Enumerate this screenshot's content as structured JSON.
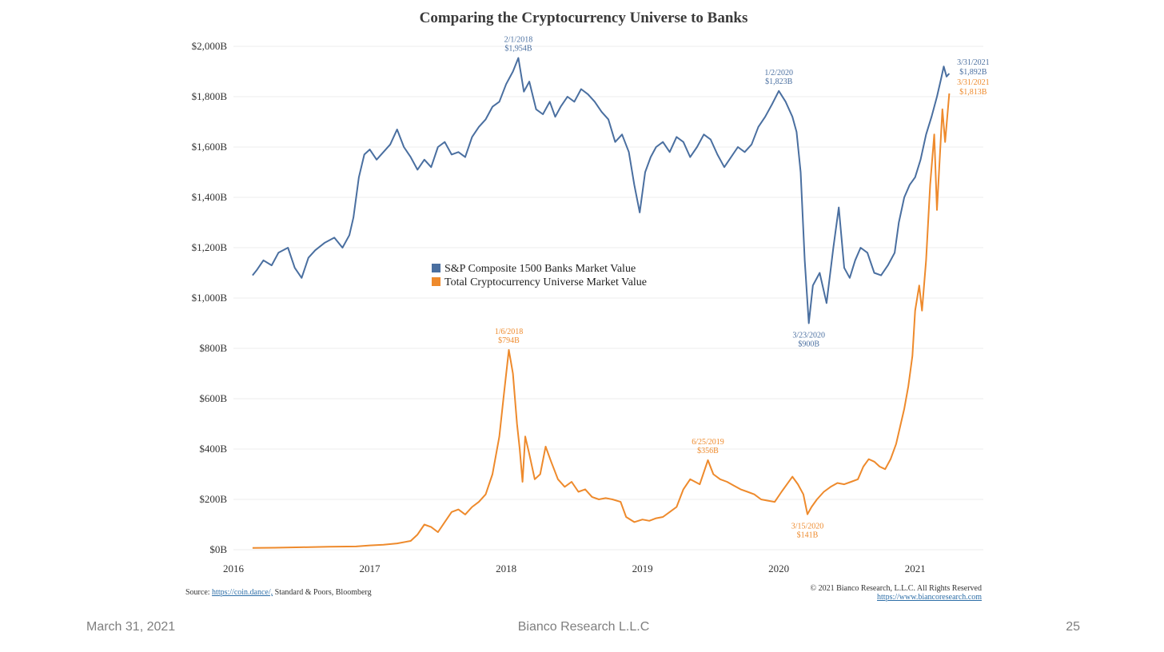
{
  "chart_title": "Comparing the Cryptocurrency Universe to Banks",
  "footer": {
    "date": "March 31, 2021",
    "company": "Bianco Research L.L.C",
    "page": "25"
  },
  "source": {
    "prefix": "Source: ",
    "link": "https://coin.dance/,",
    "suffix": " Standard & Poors, Bloomberg"
  },
  "rights": {
    "line1": "© 2021 Bianco Research, L.L.C. All Rights Reserved",
    "line2": "https://www.biancoresearch.com"
  },
  "colors": {
    "banks": "#4a6fa0",
    "crypto": "#ee8a2c",
    "grid": "#eeeeee",
    "axis_text": "#333333"
  },
  "chart_data": {
    "type": "line",
    "title": "Comparing the Cryptocurrency Universe to Banks",
    "grid": true,
    "legend_position": "center",
    "x_ticks": [
      "2016",
      "2017",
      "2018",
      "2019",
      "2020",
      "2021"
    ],
    "x_range": [
      2016.0,
      2021.5
    ],
    "y_ticks": [
      "$0B",
      "$200B",
      "$400B",
      "$600B",
      "$800B",
      "$1,000B",
      "$1,200B",
      "$1,400B",
      "$1,600B",
      "$1,800B",
      "$2,000B"
    ],
    "y_range": [
      0,
      2000
    ],
    "series": [
      {
        "name": "S&P Composite 1500 Banks Market Value",
        "color": "#4a6fa0",
        "points": [
          [
            2016.14,
            1090
          ],
          [
            2016.17,
            1110
          ],
          [
            2016.22,
            1150
          ],
          [
            2016.28,
            1130
          ],
          [
            2016.33,
            1180
          ],
          [
            2016.4,
            1200
          ],
          [
            2016.45,
            1120
          ],
          [
            2016.5,
            1080
          ],
          [
            2016.55,
            1160
          ],
          [
            2016.6,
            1190
          ],
          [
            2016.67,
            1220
          ],
          [
            2016.74,
            1240
          ],
          [
            2016.8,
            1200
          ],
          [
            2016.85,
            1250
          ],
          [
            2016.88,
            1320
          ],
          [
            2016.92,
            1480
          ],
          [
            2016.96,
            1570
          ],
          [
            2017.0,
            1590
          ],
          [
            2017.05,
            1550
          ],
          [
            2017.1,
            1580
          ],
          [
            2017.15,
            1610
          ],
          [
            2017.2,
            1670
          ],
          [
            2017.25,
            1600
          ],
          [
            2017.3,
            1560
          ],
          [
            2017.35,
            1510
          ],
          [
            2017.4,
            1550
          ],
          [
            2017.45,
            1520
          ],
          [
            2017.5,
            1600
          ],
          [
            2017.55,
            1620
          ],
          [
            2017.6,
            1570
          ],
          [
            2017.65,
            1580
          ],
          [
            2017.7,
            1560
          ],
          [
            2017.75,
            1640
          ],
          [
            2017.8,
            1680
          ],
          [
            2017.85,
            1710
          ],
          [
            2017.9,
            1760
          ],
          [
            2017.95,
            1780
          ],
          [
            2018.0,
            1850
          ],
          [
            2018.05,
            1900
          ],
          [
            2018.09,
            1954
          ],
          [
            2018.13,
            1820
          ],
          [
            2018.17,
            1860
          ],
          [
            2018.22,
            1750
          ],
          [
            2018.27,
            1730
          ],
          [
            2018.32,
            1780
          ],
          [
            2018.36,
            1720
          ],
          [
            2018.4,
            1760
          ],
          [
            2018.45,
            1800
          ],
          [
            2018.5,
            1780
          ],
          [
            2018.55,
            1830
          ],
          [
            2018.6,
            1810
          ],
          [
            2018.65,
            1780
          ],
          [
            2018.7,
            1740
          ],
          [
            2018.75,
            1710
          ],
          [
            2018.8,
            1620
          ],
          [
            2018.85,
            1650
          ],
          [
            2018.9,
            1580
          ],
          [
            2018.94,
            1450
          ],
          [
            2018.98,
            1340
          ],
          [
            2019.02,
            1500
          ],
          [
            2019.06,
            1560
          ],
          [
            2019.1,
            1600
          ],
          [
            2019.15,
            1620
          ],
          [
            2019.2,
            1580
          ],
          [
            2019.25,
            1640
          ],
          [
            2019.3,
            1620
          ],
          [
            2019.35,
            1560
          ],
          [
            2019.4,
            1600
          ],
          [
            2019.45,
            1650
          ],
          [
            2019.5,
            1630
          ],
          [
            2019.55,
            1570
          ],
          [
            2019.6,
            1520
          ],
          [
            2019.65,
            1560
          ],
          [
            2019.7,
            1600
          ],
          [
            2019.75,
            1580
          ],
          [
            2019.8,
            1610
          ],
          [
            2019.85,
            1680
          ],
          [
            2019.9,
            1720
          ],
          [
            2019.95,
            1770
          ],
          [
            2020.0,
            1823
          ],
          [
            2020.05,
            1780
          ],
          [
            2020.1,
            1720
          ],
          [
            2020.13,
            1660
          ],
          [
            2020.16,
            1500
          ],
          [
            2020.19,
            1150
          ],
          [
            2020.22,
            900
          ],
          [
            2020.25,
            1050
          ],
          [
            2020.3,
            1100
          ],
          [
            2020.35,
            980
          ],
          [
            2020.4,
            1200
          ],
          [
            2020.44,
            1360
          ],
          [
            2020.48,
            1120
          ],
          [
            2020.52,
            1080
          ],
          [
            2020.56,
            1150
          ],
          [
            2020.6,
            1200
          ],
          [
            2020.65,
            1180
          ],
          [
            2020.7,
            1100
          ],
          [
            2020.75,
            1090
          ],
          [
            2020.8,
            1130
          ],
          [
            2020.85,
            1180
          ],
          [
            2020.88,
            1300
          ],
          [
            2020.92,
            1400
          ],
          [
            2020.96,
            1450
          ],
          [
            2021.0,
            1480
          ],
          [
            2021.04,
            1550
          ],
          [
            2021.08,
            1650
          ],
          [
            2021.12,
            1720
          ],
          [
            2021.16,
            1800
          ],
          [
            2021.19,
            1870
          ],
          [
            2021.21,
            1920
          ],
          [
            2021.23,
            1880
          ],
          [
            2021.25,
            1892
          ]
        ],
        "annotations": [
          {
            "x": 2018.09,
            "y": 1954,
            "date": "2/1/2018",
            "value": "$1,954B"
          },
          {
            "x": 2020.0,
            "y": 1823,
            "date": "1/2/2020",
            "value": "$1,823B"
          },
          {
            "x": 2020.22,
            "y": 900,
            "date": "3/23/2020",
            "value": "$900B"
          },
          {
            "x": 2021.25,
            "y": 1892,
            "date": "3/31/2021",
            "value": "$1,892B"
          }
        ]
      },
      {
        "name": "Total Cryptocurrency Universe Market Value",
        "color": "#ee8a2c",
        "points": [
          [
            2016.14,
            7
          ],
          [
            2016.3,
            8
          ],
          [
            2016.5,
            10
          ],
          [
            2016.7,
            12
          ],
          [
            2016.9,
            13
          ],
          [
            2017.0,
            17
          ],
          [
            2017.1,
            20
          ],
          [
            2017.2,
            25
          ],
          [
            2017.3,
            35
          ],
          [
            2017.35,
            60
          ],
          [
            2017.4,
            100
          ],
          [
            2017.45,
            90
          ],
          [
            2017.5,
            70
          ],
          [
            2017.55,
            110
          ],
          [
            2017.6,
            150
          ],
          [
            2017.65,
            160
          ],
          [
            2017.7,
            140
          ],
          [
            2017.75,
            170
          ],
          [
            2017.8,
            190
          ],
          [
            2017.85,
            220
          ],
          [
            2017.9,
            300
          ],
          [
            2017.95,
            450
          ],
          [
            2017.98,
            600
          ],
          [
            2018.02,
            794
          ],
          [
            2018.05,
            700
          ],
          [
            2018.08,
            500
          ],
          [
            2018.1,
            400
          ],
          [
            2018.12,
            270
          ],
          [
            2018.14,
            450
          ],
          [
            2018.17,
            380
          ],
          [
            2018.21,
            280
          ],
          [
            2018.25,
            300
          ],
          [
            2018.29,
            410
          ],
          [
            2018.33,
            350
          ],
          [
            2018.38,
            280
          ],
          [
            2018.43,
            250
          ],
          [
            2018.48,
            270
          ],
          [
            2018.53,
            230
          ],
          [
            2018.58,
            240
          ],
          [
            2018.63,
            210
          ],
          [
            2018.68,
            200
          ],
          [
            2018.73,
            205
          ],
          [
            2018.78,
            200
          ],
          [
            2018.84,
            190
          ],
          [
            2018.88,
            130
          ],
          [
            2018.94,
            110
          ],
          [
            2019.0,
            120
          ],
          [
            2019.05,
            115
          ],
          [
            2019.1,
            125
          ],
          [
            2019.15,
            130
          ],
          [
            2019.2,
            150
          ],
          [
            2019.25,
            170
          ],
          [
            2019.3,
            240
          ],
          [
            2019.35,
            280
          ],
          [
            2019.42,
            260
          ],
          [
            2019.48,
            356
          ],
          [
            2019.52,
            300
          ],
          [
            2019.57,
            280
          ],
          [
            2019.62,
            270
          ],
          [
            2019.67,
            255
          ],
          [
            2019.72,
            240
          ],
          [
            2019.77,
            230
          ],
          [
            2019.82,
            220
          ],
          [
            2019.87,
            200
          ],
          [
            2019.92,
            195
          ],
          [
            2019.97,
            190
          ],
          [
            2020.02,
            230
          ],
          [
            2020.06,
            260
          ],
          [
            2020.1,
            290
          ],
          [
            2020.14,
            260
          ],
          [
            2020.18,
            220
          ],
          [
            2020.21,
            141
          ],
          [
            2020.24,
            170
          ],
          [
            2020.28,
            200
          ],
          [
            2020.33,
            230
          ],
          [
            2020.38,
            250
          ],
          [
            2020.43,
            265
          ],
          [
            2020.48,
            260
          ],
          [
            2020.53,
            270
          ],
          [
            2020.58,
            280
          ],
          [
            2020.62,
            330
          ],
          [
            2020.66,
            360
          ],
          [
            2020.7,
            350
          ],
          [
            2020.74,
            330
          ],
          [
            2020.78,
            320
          ],
          [
            2020.82,
            360
          ],
          [
            2020.86,
            420
          ],
          [
            2020.89,
            490
          ],
          [
            2020.92,
            560
          ],
          [
            2020.95,
            650
          ],
          [
            2020.98,
            770
          ],
          [
            2021.0,
            950
          ],
          [
            2021.03,
            1050
          ],
          [
            2021.05,
            950
          ],
          [
            2021.08,
            1150
          ],
          [
            2021.11,
            1450
          ],
          [
            2021.14,
            1650
          ],
          [
            2021.16,
            1350
          ],
          [
            2021.18,
            1550
          ],
          [
            2021.2,
            1750
          ],
          [
            2021.22,
            1620
          ],
          [
            2021.25,
            1813
          ]
        ],
        "annotations": [
          {
            "x": 2018.02,
            "y": 794,
            "date": "1/6/2018",
            "value": "$794B"
          },
          {
            "x": 2019.48,
            "y": 356,
            "date": "6/25/2019",
            "value": "$356B"
          },
          {
            "x": 2020.21,
            "y": 141,
            "date": "3/15/2020",
            "value": "$141B"
          },
          {
            "x": 2021.25,
            "y": 1813,
            "date": "3/31/2021",
            "value": "$1,813B"
          }
        ]
      }
    ]
  }
}
